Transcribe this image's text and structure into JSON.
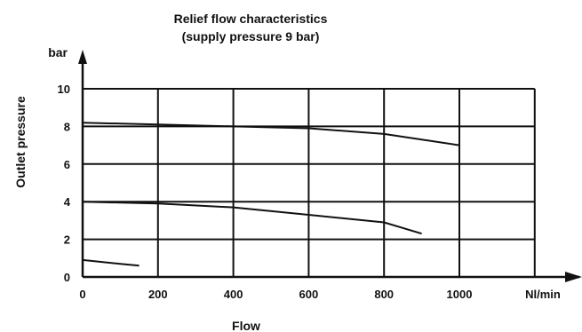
{
  "chart_data": {
    "type": "line",
    "title": "Relief flow characteristics",
    "subtitle": "(supply pressure 9 bar)",
    "xlabel": "Flow",
    "ylabel": "Outlet pressure",
    "x_unit": "Nl/min",
    "y_unit": "bar",
    "xlim": [
      0,
      1200
    ],
    "ylim": [
      0,
      10
    ],
    "x_ticks": [
      "0",
      "200",
      "400",
      "600",
      "800",
      "1000"
    ],
    "y_ticks": [
      "0",
      "2",
      "4",
      "6",
      "8",
      "10"
    ],
    "grid": true,
    "legend": "none",
    "series": [
      {
        "x": [
          0,
          200,
          400,
          600,
          800,
          1000
        ],
        "y": [
          8.2,
          8.1,
          8.0,
          7.9,
          7.6,
          7.0
        ]
      },
      {
        "x": [
          0,
          200,
          400,
          600,
          800,
          900
        ],
        "y": [
          4.0,
          3.9,
          3.7,
          3.3,
          2.9,
          2.3
        ]
      },
      {
        "x": [
          0,
          100,
          150
        ],
        "y": [
          0.9,
          0.7,
          0.6
        ]
      }
    ],
    "colors": {
      "line": "#111111",
      "grid": "#111111",
      "background": "#ffffff"
    }
  }
}
